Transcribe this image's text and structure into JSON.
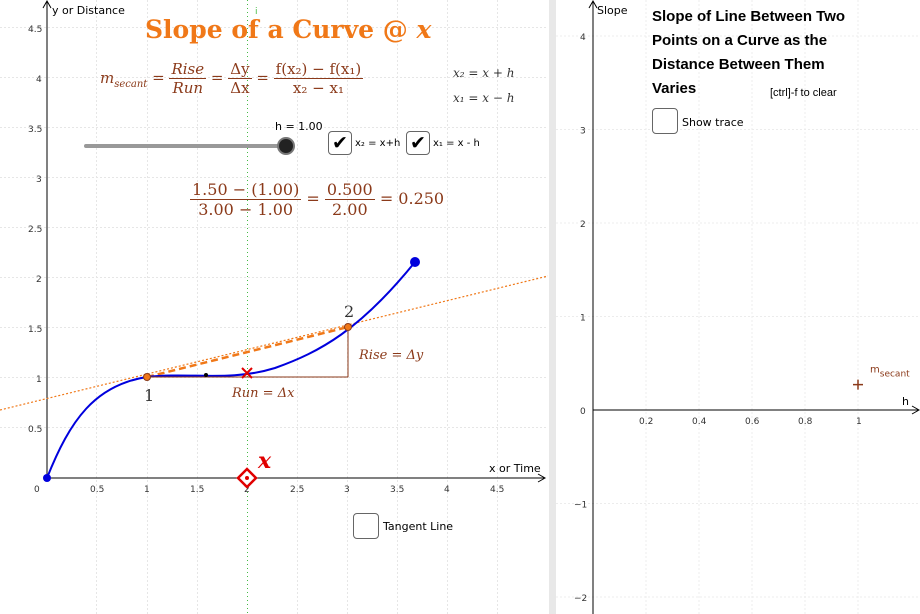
{
  "left": {
    "title_prefix": "Slope of a Curve @ ",
    "title_var": "x",
    "y_axis_label": "y or Distance",
    "x_axis_label": "x or Time",
    "x_ticks": [
      "0",
      "0.5",
      "1",
      "1.5",
      "2",
      "2.5",
      "3",
      "3.5",
      "4",
      "4.5"
    ],
    "y_ticks": [
      "0.5",
      "1",
      "1.5",
      "2",
      "2.5",
      "3",
      "3.5",
      "4",
      "4.5"
    ],
    "secant_formula": {
      "lhs": "m",
      "lhs_sub": "secant",
      "rise": "Rise",
      "run": "Run",
      "dy": "Δy",
      "dx": "Δx",
      "fnum": "f(x₂) − f(x₁)",
      "fden": "x₂ − x₁"
    },
    "x2_def": "x₂ = x + h",
    "x1_def": "x₁ = x − h",
    "slider_label": "h = 1.00",
    "h_value": 1.0,
    "checkbox_x2_label": "x₂ = x+h",
    "checkbox_x1_label": "x₁ = x - h",
    "checkbox_x2_checked": true,
    "checkbox_x1_checked": true,
    "computed": {
      "num": "1.50 − (1.00)",
      "den": "3.00 − 1.00",
      "num2": "0.500",
      "den2": "2.00",
      "result": "= 0.250"
    },
    "point1_label": "1",
    "point2_label": "2",
    "rise_label": "Rise = Δy",
    "run_label": "Run = Δx",
    "x_marker_label": "x",
    "x_value": 2,
    "tangent_label": "Tangent Line",
    "tangent_checked": false,
    "top_marker": "i"
  },
  "right": {
    "y_axis_label": "Slope",
    "x_axis_label": "h",
    "title": "Slope of Line Between Two Points on a Curve as the Distance Between Them Varies",
    "ctrl_hint": "[ctrl]-f to clear",
    "show_trace_label": "Show trace",
    "show_trace_checked": false,
    "x_ticks": [
      "0.2",
      "0.4",
      "0.6",
      "0.8",
      "1"
    ],
    "y_ticks": [
      "4",
      "3",
      "2",
      "1",
      "0",
      "−1",
      "−2"
    ],
    "point_label": "m",
    "point_label_sub": "secant",
    "point_h": 1,
    "point_slope": 0.25
  },
  "colors": {
    "curve": "#0000dd",
    "secant": "#f07818",
    "secant_extended": "#f07818",
    "rise_run": "#8b3a1a",
    "x_marker": "#e00000",
    "title": "#f07818",
    "formula": "#8b3a1a"
  }
}
